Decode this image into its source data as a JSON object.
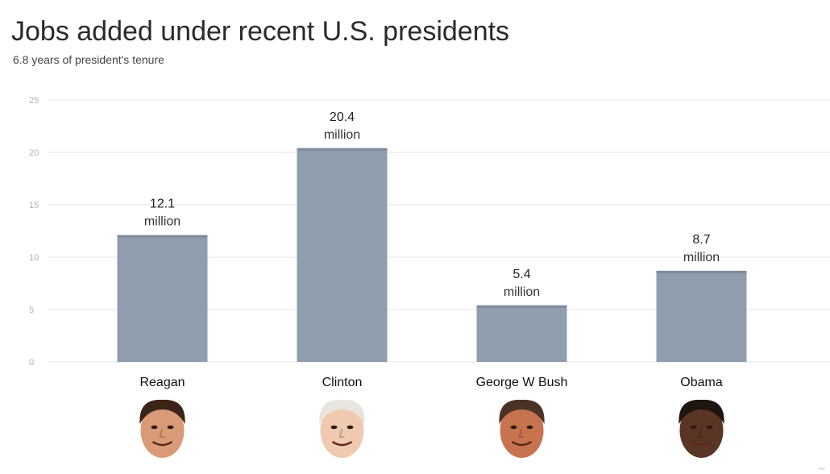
{
  "colors": {
    "bar": "#8f9daf",
    "bar_top": "#7f8b9c",
    "grid": "#e6e6e6",
    "face_skin_1": "#d99a78",
    "face_skin_2": "#f0c9b0",
    "face_skin_3": "#c8734f",
    "face_skin_4": "#5a3424",
    "hair_1": "#3a2418",
    "hair_2": "#e8e4de",
    "hair_3": "#4a3326",
    "hair_4": "#1e1410"
  },
  "chart_data": {
    "type": "bar",
    "title": "Jobs added under recent U.S. presidents",
    "subtitle": "6.8 years of president's tenure",
    "categories": [
      "Reagan",
      "Clinton",
      "George W Bush",
      "Obama"
    ],
    "values": [
      12.1,
      20.4,
      5.4,
      8.7
    ],
    "value_labels": [
      "12.1",
      "20.4",
      "5.4",
      "8.7"
    ],
    "unit_label": "million",
    "ylim": [
      0,
      25
    ],
    "yticks": [
      0,
      5,
      10,
      15,
      20,
      25
    ],
    "grid": true,
    "legend": "none",
    "icons": [
      "reagan-portrait-icon",
      "clinton-portrait-icon",
      "bush-portrait-icon",
      "obama-portrait-icon"
    ]
  }
}
